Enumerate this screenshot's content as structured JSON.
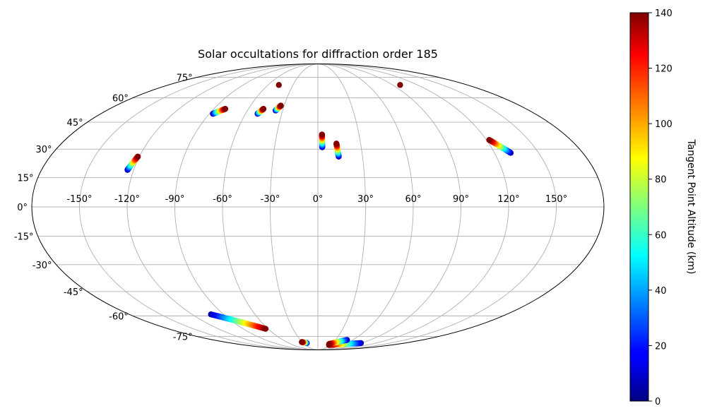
{
  "chart_data": {
    "type": "scatter",
    "projection": "mollweide",
    "title": "Solar occultations for diffraction order 185",
    "grid": true,
    "longitude_ticks": [
      "-150°",
      "-120°",
      "-90°",
      "-60°",
      "-30°",
      "0°",
      "30°",
      "60°",
      "90°",
      "120°",
      "150°"
    ],
    "latitude_ticks": [
      "75°",
      "60°",
      "45°",
      "30°",
      "15°",
      "0°",
      "-15°",
      "-30°",
      "-45°",
      "-60°",
      "-75°"
    ],
    "colorbar": {
      "label": "Tangent Point Altitude (km)",
      "min": 0,
      "max": 140,
      "ticks": [
        "0",
        "20",
        "40",
        "60",
        "80",
        "100",
        "120",
        "140"
      ],
      "colormap": "jet",
      "position": "right"
    },
    "series": [
      {
        "lon_start": 122,
        "lat_start": 35,
        "lon_end": 131,
        "lat_end": 28,
        "alt_start": 140,
        "alt_end": 5
      },
      {
        "lon_start": 3,
        "lat_start": 38,
        "lon_end": 3,
        "lat_end": 31,
        "alt_start": 140,
        "alt_end": 5
      },
      {
        "lon_start": 13,
        "lat_start": 33,
        "lon_end": 14,
        "lat_end": 26,
        "alt_start": 140,
        "alt_end": 5
      },
      {
        "lon_start": -121,
        "lat_start": 26,
        "lon_end": -124,
        "lat_end": 19,
        "alt_start": 140,
        "alt_end": 5
      },
      {
        "lon_start": -80,
        "lat_start": 53,
        "lon_end": -87,
        "lat_end": 50,
        "alt_start": 140,
        "alt_end": 5
      },
      {
        "lon_start": -47,
        "lat_start": 53,
        "lon_end": -50,
        "lat_end": 50,
        "alt_start": 140,
        "alt_end": 5
      },
      {
        "lon_start": -33,
        "lat_start": 55,
        "lon_end": -36,
        "lat_end": 52,
        "alt_start": 140,
        "alt_end": 5
      },
      {
        "lon_start": -47,
        "lat_start": 69,
        "lon_end": -47,
        "lat_end": 69,
        "alt_start": 140,
        "alt_end": 140
      },
      {
        "lon_start": 99,
        "lat_start": 69,
        "lon_end": 99,
        "lat_end": 69,
        "alt_start": 140,
        "alt_end": 140
      },
      {
        "lon_start": -63,
        "lat_start": -69,
        "lon_end": -102,
        "lat_end": -59,
        "alt_start": 140,
        "alt_end": 5
      },
      {
        "lon_start": -31,
        "lat_start": -80,
        "lon_end": -23,
        "lat_end": -81,
        "alt_start": 140,
        "alt_end": 5
      },
      {
        "lon_start": 27,
        "lat_start": -83,
        "lon_end": 89,
        "lat_end": -81,
        "alt_start": 140,
        "alt_end": 5
      },
      {
        "lon_start": 25,
        "lat_start": -82,
        "lon_end": 50,
        "lat_end": -78,
        "alt_start": 140,
        "alt_end": 5
      }
    ]
  }
}
